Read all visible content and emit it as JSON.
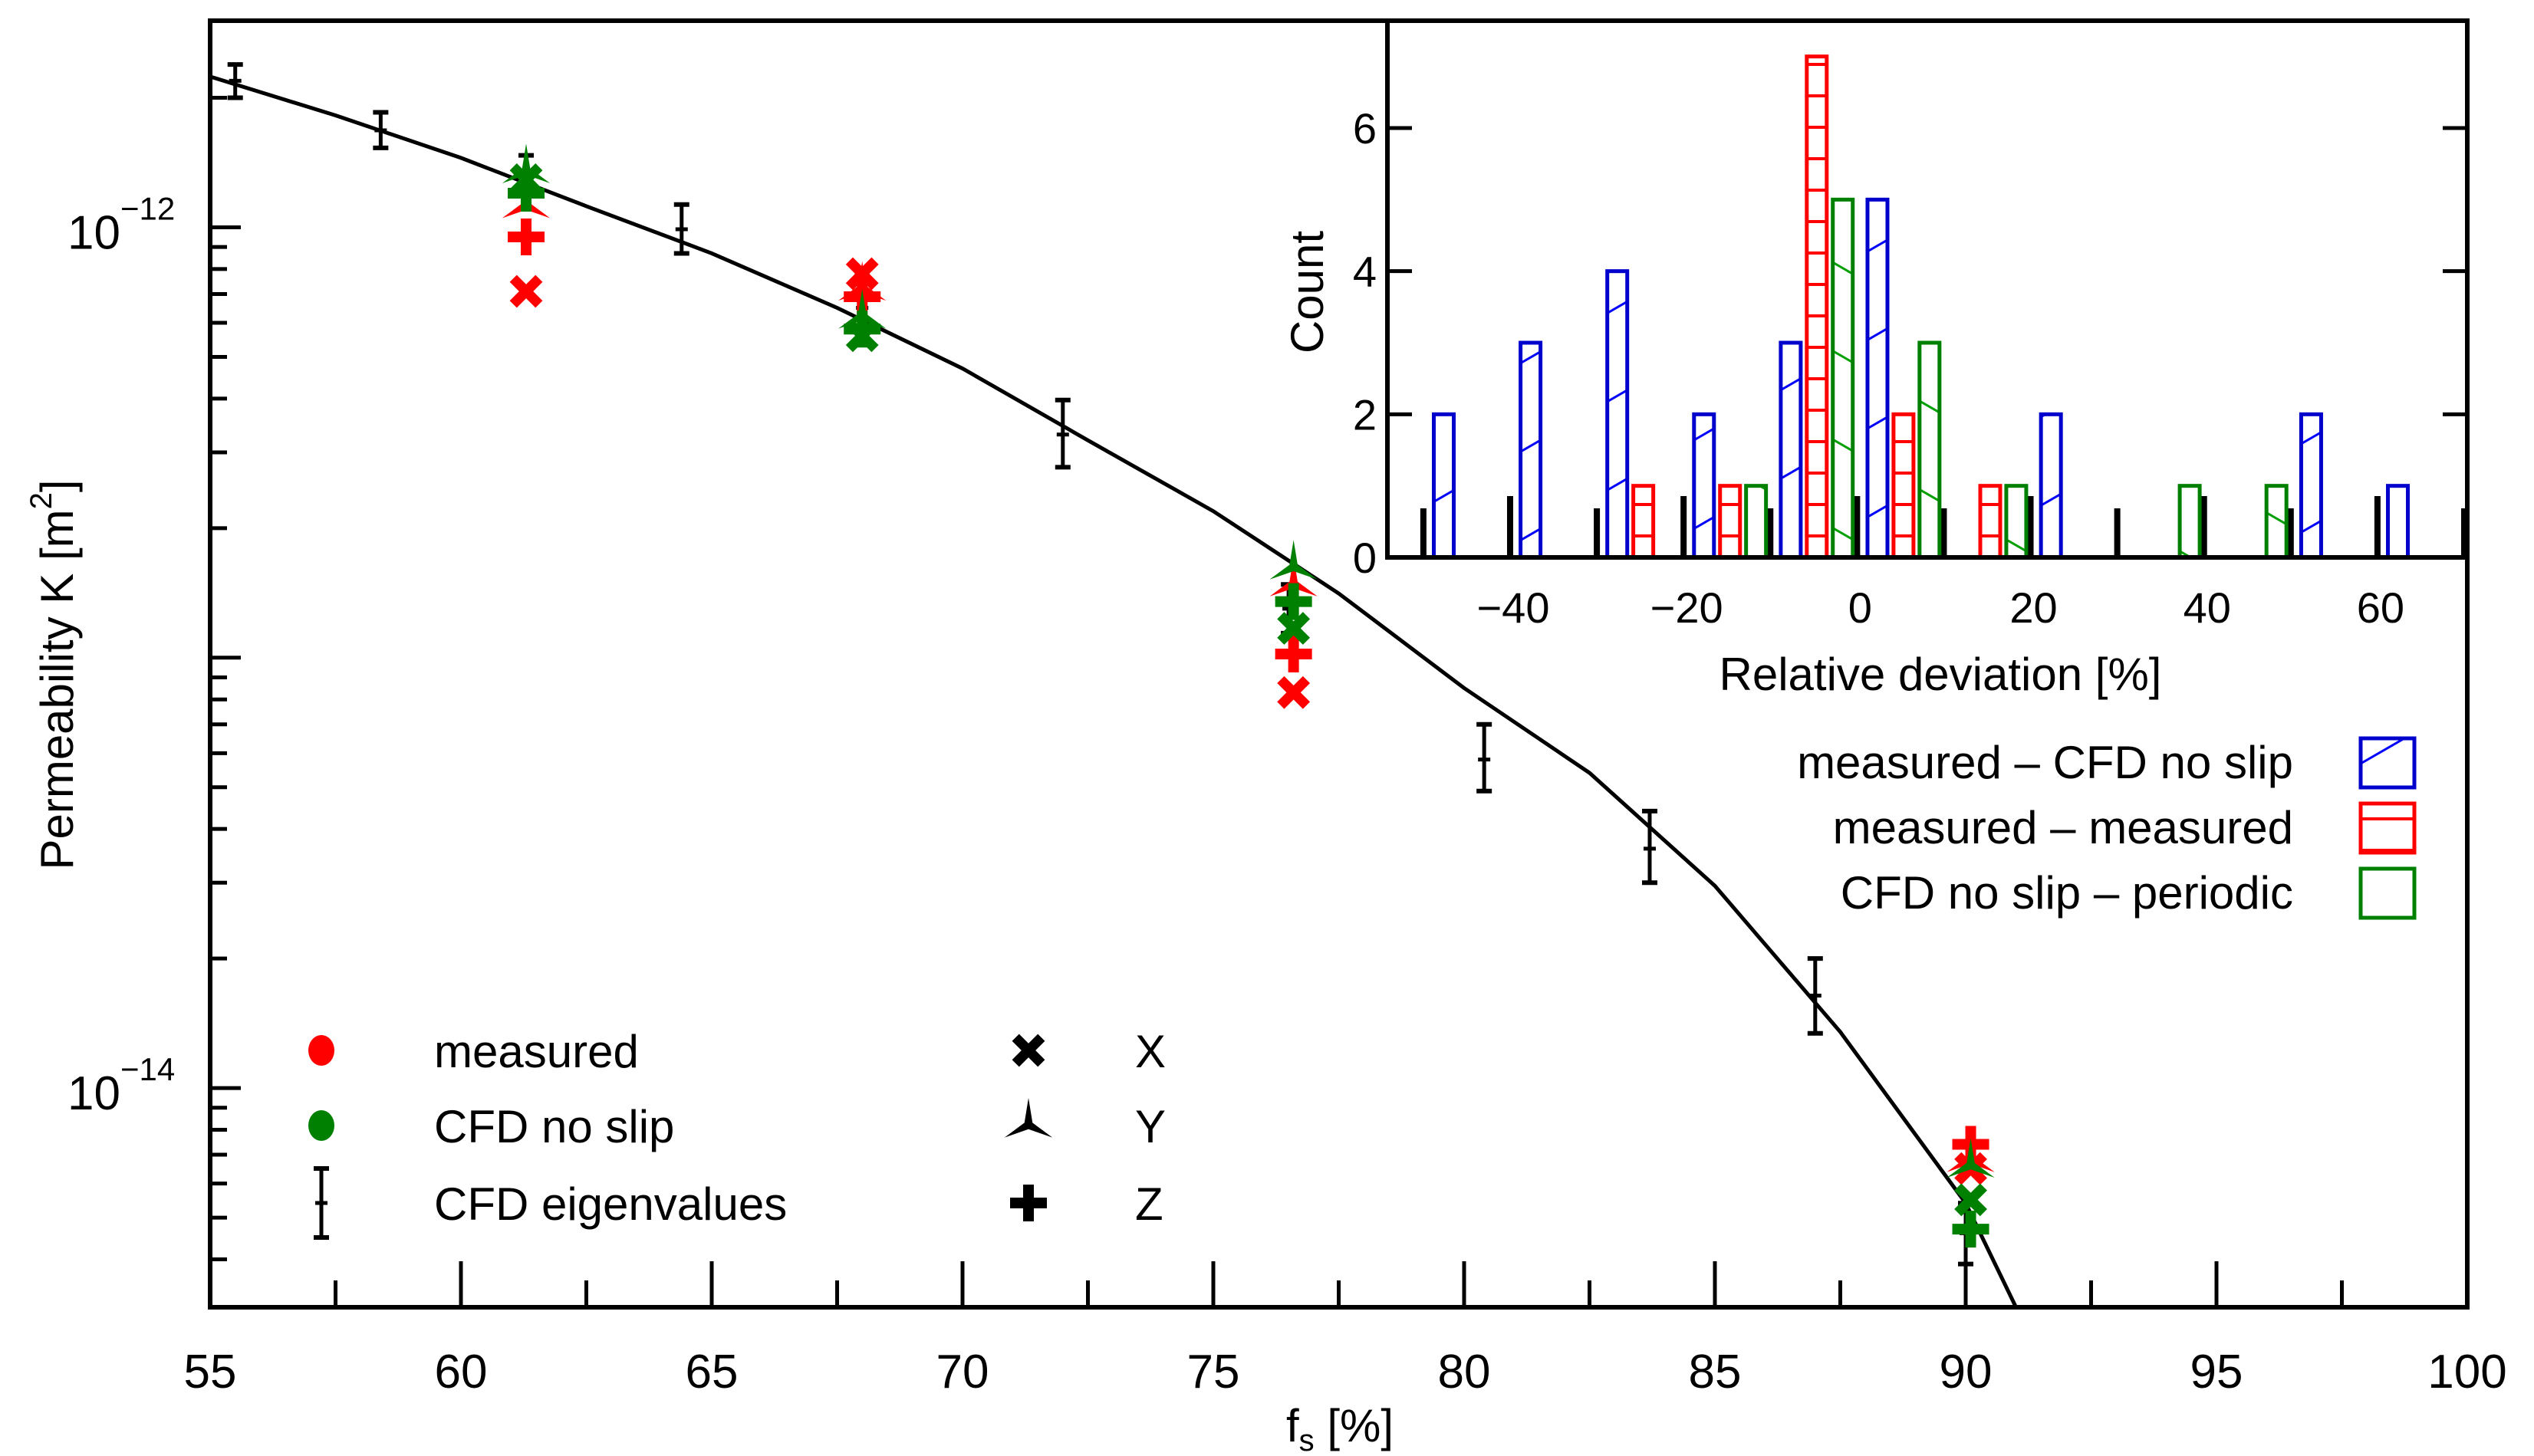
{
  "chart_data": [
    {
      "type": "scatter",
      "title": "",
      "xlabel": {
        "main": "f",
        "sub": "s",
        "rest": " [%]"
      },
      "ylabel": {
        "main": "Permeability K [m",
        "sup": "2",
        "rest": "]"
      },
      "xlim": [
        55,
        100
      ],
      "ylim": [
        3.1e-15,
        2.98e-12
      ],
      "yscale": "log",
      "x_ticks": [
        55,
        60,
        65,
        70,
        75,
        80,
        85,
        90,
        95,
        100
      ],
      "x_tick_labels": [
        "55",
        "60",
        "65",
        "70",
        "75",
        "80",
        "85",
        "90",
        "95",
        "100"
      ],
      "y_tick_labels": [
        {
          "value": 1e-12,
          "base": "10",
          "exp": "−12"
        },
        {
          "value": 1e-14,
          "base": "10",
          "exp": "−14"
        }
      ],
      "colors": {
        "measured": "#ff0000",
        "cfd": "#008000",
        "eigen": "#000000"
      },
      "legend": {
        "placement": "bottom-left",
        "entries": [
          {
            "label": "measured",
            "marker": "red-dot"
          },
          {
            "label": "CFD no slip",
            "marker": "green-dot"
          },
          {
            "label": "CFD eigenvalues",
            "marker": "errorbar"
          }
        ],
        "directions": [
          {
            "label": "X",
            "marker": "x"
          },
          {
            "label": "Y",
            "marker": "tri"
          },
          {
            "label": "Z",
            "marker": "plus"
          }
        ]
      },
      "eigenvalues": [
        {
          "x": 55.5,
          "K": 2.19e-12,
          "K_low": 2e-12,
          "K_high": 2.39e-12
        },
        {
          "x": 58.4,
          "K": 1.68e-12,
          "K_low": 1.53e-12,
          "K_high": 1.85e-12
        },
        {
          "x": 61.3,
          "K": 1.32e-12,
          "K_low": 1.19e-12,
          "K_high": 1.47e-12
        },
        {
          "x": 64.4,
          "K": 9.9e-13,
          "K_low": 8.7e-13,
          "K_high": 1.13e-12
        },
        {
          "x": 68.0,
          "K": 6.5e-13,
          "K_low": 5.5e-13,
          "K_high": 7.7e-13
        },
        {
          "x": 72.0,
          "K": 3.3e-13,
          "K_low": 2.77e-13,
          "K_high": 3.97e-13
        },
        {
          "x": 76.5,
          "K": 1.3e-13,
          "K_low": 1.14e-13,
          "K_high": 1.48e-13
        },
        {
          "x": 80.4,
          "K": 5.8e-14,
          "K_low": 4.9e-14,
          "K_high": 7e-14
        },
        {
          "x": 83.7,
          "K": 3.6e-14,
          "K_low": 3e-14,
          "K_high": 4.4e-14
        },
        {
          "x": 87.0,
          "K": 1.64e-14,
          "K_low": 1.34e-14,
          "K_high": 2e-14
        },
        {
          "x": 90.0,
          "K": 4.6e-15,
          "K_low": 3.9e-15,
          "K_high": 5.4e-15
        }
      ],
      "fit_curve": {
        "x": [
          55,
          57.5,
          60,
          62.5,
          65,
          67.5,
          70,
          72.5,
          75,
          77.5,
          80,
          82.5,
          85,
          87.5,
          90,
          91
        ],
        "K": [
          2.24e-12,
          1.82e-12,
          1.45e-12,
          1.12e-12,
          8.7e-13,
          6.5e-13,
          4.7e-13,
          3.2e-13,
          2.19e-13,
          1.41e-13,
          8.5e-14,
          5.4e-14,
          2.95e-14,
          1.35e-14,
          5.4e-15,
          3.1e-15
        ]
      },
      "series": [
        {
          "name": "measured",
          "points": [
            {
              "x": 61.3,
              "dir": "X",
              "K": 7.1e-13
            },
            {
              "x": 61.3,
              "dir": "Y",
              "K": 1.12e-12
            },
            {
              "x": 61.3,
              "dir": "Z",
              "K": 9.5e-13
            },
            {
              "x": 68.0,
              "dir": "X",
              "K": 7.8e-13
            },
            {
              "x": 68.0,
              "dir": "Y",
              "K": 7.2e-13
            },
            {
              "x": 68.0,
              "dir": "Z",
              "K": 6.9e-13
            },
            {
              "x": 76.6,
              "dir": "X",
              "K": 8.3e-14
            },
            {
              "x": 76.6,
              "dir": "Y",
              "K": 1.48e-13
            },
            {
              "x": 76.6,
              "dir": "Z",
              "K": 1.02e-13
            },
            {
              "x": 90.1,
              "dir": "X",
              "K": 6.5e-15
            },
            {
              "x": 90.1,
              "dir": "Y",
              "K": 6.8e-15
            },
            {
              "x": 90.1,
              "dir": "Z",
              "K": 7.4e-15
            }
          ]
        },
        {
          "name": "CFD no slip",
          "points": [
            {
              "x": 61.3,
              "dir": "X",
              "K": 1.29e-12
            },
            {
              "x": 61.3,
              "dir": "Y",
              "K": 1.35e-12
            },
            {
              "x": 61.3,
              "dir": "Z",
              "K": 1.2e-12
            },
            {
              "x": 68.0,
              "dir": "X",
              "K": 5.6e-13
            },
            {
              "x": 68.0,
              "dir": "Y",
              "K": 6.2e-13
            },
            {
              "x": 68.0,
              "dir": "Z",
              "K": 5.8e-13
            },
            {
              "x": 76.6,
              "dir": "X",
              "K": 1.17e-13
            },
            {
              "x": 76.6,
              "dir": "Y",
              "K": 1.62e-13
            },
            {
              "x": 76.6,
              "dir": "Z",
              "K": 1.35e-13
            },
            {
              "x": 90.1,
              "dir": "X",
              "K": 5.5e-15
            },
            {
              "x": 90.1,
              "dir": "Y",
              "K": 6.6e-15
            },
            {
              "x": 90.1,
              "dir": "Z",
              "K": 4.7e-15
            }
          ]
        }
      ]
    },
    {
      "type": "bar",
      "title": "",
      "xlabel": "Relative deviation [%]",
      "ylabel": "Count",
      "xlim": [
        -54.5,
        70
      ],
      "ylim": [
        0,
        7.5
      ],
      "x_ticks": [
        -40,
        -20,
        0,
        20,
        40,
        60
      ],
      "x_tick_labels": [
        "−40",
        "−20",
        "0",
        "20",
        "40",
        "60"
      ],
      "y_ticks": [
        0,
        2,
        4,
        6
      ],
      "y_tick_labels": [
        "0",
        "2",
        "4",
        "6"
      ],
      "bar_width": 2.3,
      "legend": {
        "placement": "below-right"
      },
      "series": [
        {
          "name": "measured – CFD no slip",
          "color": "#0000cc",
          "hatch": "backslash",
          "x": [
            -48,
            -38,
            -28,
            -18,
            -8,
            2,
            22,
            52,
            62
          ],
          "values": [
            2,
            3,
            4,
            2,
            3,
            5,
            2,
            2,
            1
          ]
        },
        {
          "name": "measured – measured",
          "color": "#ff0000",
          "hatch": "horizontal",
          "x": [
            -25,
            -15,
            -5,
            5,
            15
          ],
          "values": [
            1,
            1,
            7,
            2,
            1
          ]
        },
        {
          "name": "CFD no slip – periodic",
          "color": "#008000",
          "hatch": "slash",
          "x": [
            -12,
            -2,
            8,
            18,
            38,
            48
          ],
          "values": [
            1,
            5,
            3,
            1,
            1,
            1
          ]
        }
      ]
    }
  ]
}
